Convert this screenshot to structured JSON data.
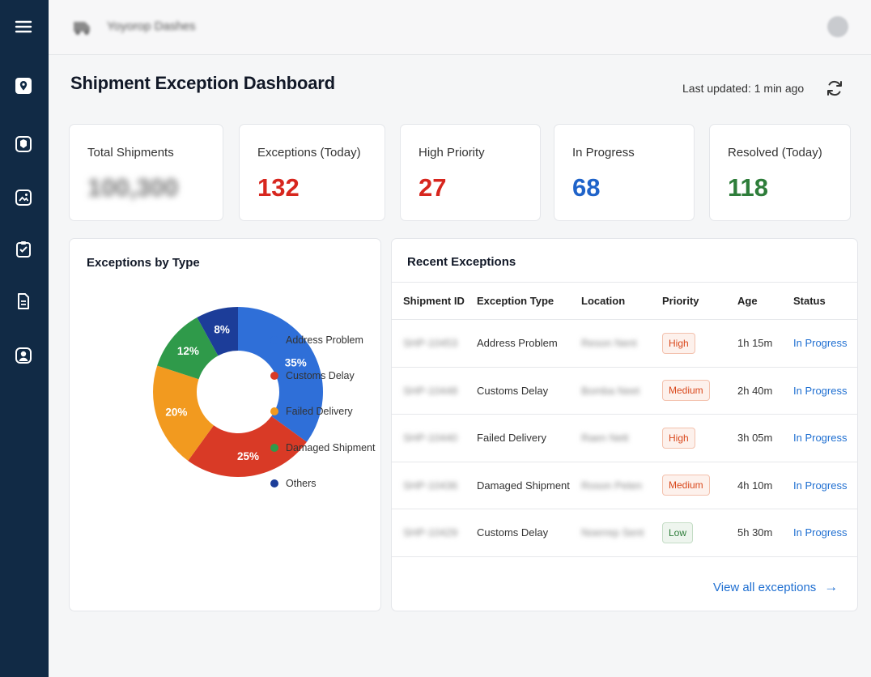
{
  "app": {
    "title": "Shipment Exception Dashboard",
    "brand_name": "Yoyorop Dashes",
    "last_updated": "Last updated: 1 min ago"
  },
  "sidebar": {
    "items": [
      {
        "name": "menu",
        "icon": "hamburger-icon"
      },
      {
        "name": "dashboard",
        "icon": "location-pin-icon",
        "active": true
      },
      {
        "name": "shipments",
        "icon": "package-icon"
      },
      {
        "name": "exceptions",
        "icon": "image-icon"
      },
      {
        "name": "reports",
        "icon": "clipboard-icon"
      },
      {
        "name": "documents",
        "icon": "document-icon"
      },
      {
        "name": "users",
        "icon": "user-icon"
      }
    ]
  },
  "kpis": [
    {
      "label": "Total Shipments",
      "value": "100,300",
      "color": "#777777",
      "blurred": true
    },
    {
      "label": "Exceptions (Today)",
      "value": "132",
      "color": "#d7261e"
    },
    {
      "label": "High Priority",
      "value": "27",
      "color": "#d7261e"
    },
    {
      "label": "In Progress",
      "value": "68",
      "color": "#1f63c9"
    },
    {
      "label": "Resolved (Today)",
      "value": "118",
      "color": "#2e7d3a"
    }
  ],
  "chart_panel": {
    "title": "Exceptions by Type"
  },
  "chart_data": {
    "type": "pie",
    "donut": true,
    "title": "Exceptions by Type",
    "legend_position": "right",
    "categories": [
      "Address Problem",
      "Customs Delay",
      "Failed Delivery",
      "Damaged Shipment",
      "Others"
    ],
    "values": [
      35,
      25,
      20,
      12,
      8
    ],
    "labels": [
      "35%",
      "25%",
      "20%",
      "12%",
      "8%"
    ],
    "colors": [
      "#2f6fd8",
      "#d93a26",
      "#f29a1f",
      "#2f9a4a",
      "#1c3d99"
    ]
  },
  "table_panel": {
    "title": "Recent Exceptions",
    "columns": [
      "Shipment ID",
      "Exception Type",
      "Location",
      "Priority",
      "Age",
      "Status"
    ],
    "rows": [
      {
        "id": "SHP-10453",
        "type": "Address Problem",
        "location": "Reson Nent",
        "priority": "High",
        "priority_level": "high",
        "age": "1h 15m",
        "status": "In Progress"
      },
      {
        "id": "SHP-10448",
        "type": "Customs Delay",
        "location": "Bomba Neet",
        "priority": "Medium",
        "priority_level": "medium",
        "age": "2h 40m",
        "status": "In Progress"
      },
      {
        "id": "SHP-10440",
        "type": "Failed Delivery",
        "location": "Raen Nett",
        "priority": "High",
        "priority_level": "high",
        "age": "3h 05m",
        "status": "In Progress"
      },
      {
        "id": "SHP-10436",
        "type": "Damaged Shipment",
        "location": "Roson Peten",
        "priority": "Medium",
        "priority_level": "medium",
        "age": "4h 10m",
        "status": "In Progress"
      },
      {
        "id": "SHP-10429",
        "type": "Customs Delay",
        "location": "Noerrep Sent",
        "priority": "Low",
        "priority_level": "low",
        "age": "5h 30m",
        "status": "In Progress"
      }
    ],
    "view_all": "View all exceptions"
  }
}
